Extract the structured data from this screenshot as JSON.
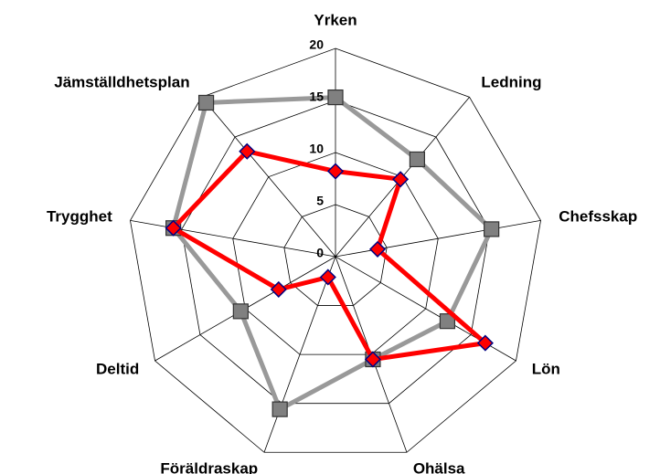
{
  "chart_data": {
    "type": "radar",
    "categories": [
      "Yrken",
      "Ledning",
      "Chefsskap",
      "Lön",
      "Ohälsa",
      "Föräldraskap",
      "Deltid",
      "Trygghet",
      "Jämställdhetsplan"
    ],
    "series": [
      {
        "color": "#999999",
        "values": [
          15.3,
          12.2,
          15.2,
          12.4,
          10.5,
          15.6,
          10.5,
          15.8,
          19.3
        ]
      },
      {
        "color": "#ff0000",
        "values": [
          8.2,
          9.7,
          4.1,
          16.6,
          10.5,
          2.1,
          6.3,
          15.8,
          13.2
        ]
      }
    ],
    "ylim": [
      0,
      20
    ],
    "yticks": [
      0,
      5,
      10,
      15,
      20
    ],
    "grid": true
  }
}
